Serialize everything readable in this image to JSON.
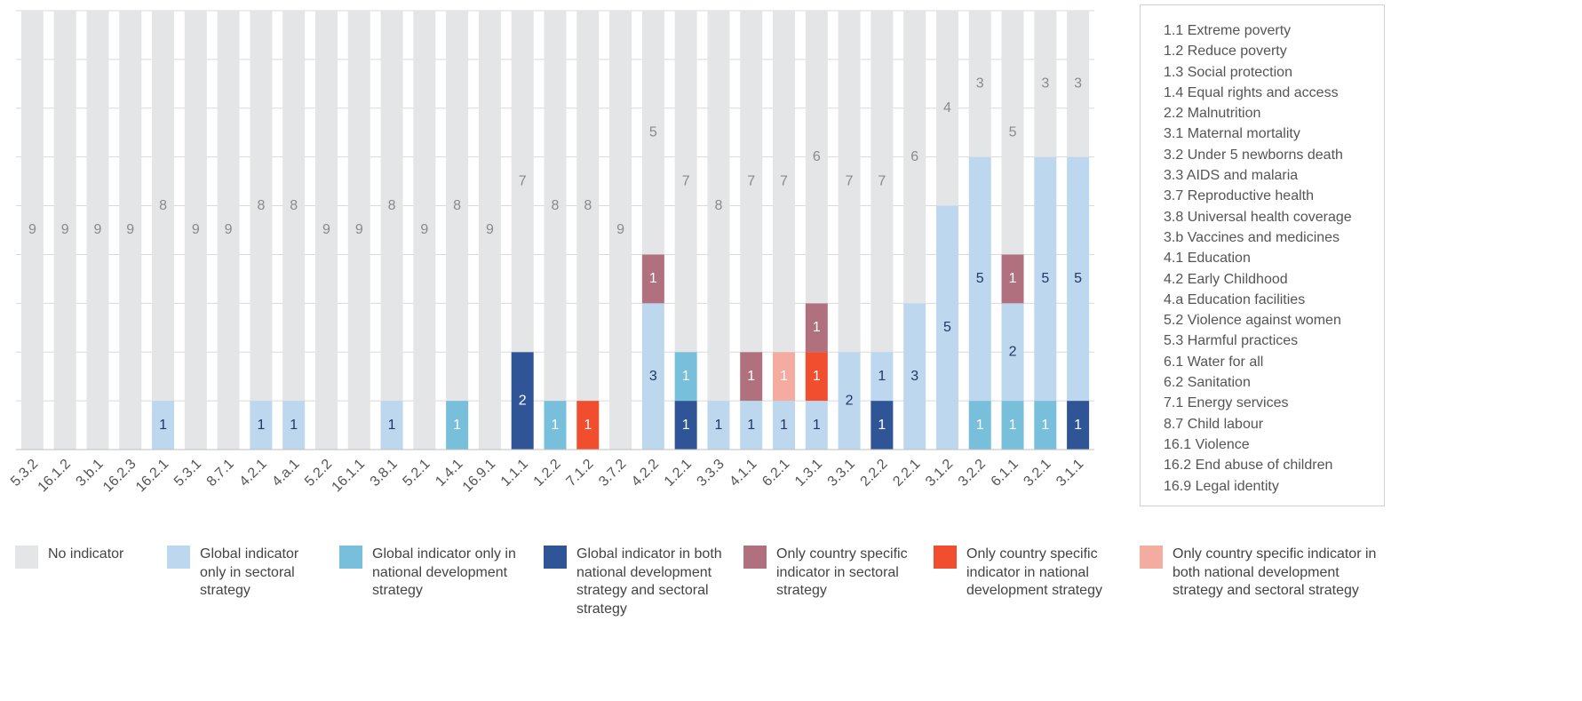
{
  "chart_data": {
    "type": "stacked_bar",
    "categories": [
      "5.3.2",
      "16.1.2",
      "3.b.1",
      "16.2.3",
      "16.2.1",
      "5.3.1",
      "8.7.1",
      "4.2.1",
      "4.a.1",
      "5.2.2",
      "16.1.1",
      "3.8.1",
      "5.2.1",
      "1.4.1",
      "16.9.1",
      "1.1.1",
      "1.2.2",
      "7.1.2",
      "3.7.2",
      "4.2.2",
      "1.2.1",
      "3.3.3",
      "4.1.1",
      "6.2.1",
      "1.3.1",
      "3.3.1",
      "2.2.2",
      "2.2.1",
      "3.1.2",
      "3.2.2",
      "6.1.1",
      "3.2.1",
      "3.1.1"
    ],
    "series": [
      {
        "name": "No indicator",
        "color": "#e4e5e7",
        "label_color": "#8a8a8a",
        "values": [
          9,
          9,
          9,
          9,
          8,
          9,
          9,
          8,
          8,
          9,
          9,
          8,
          9,
          8,
          9,
          7,
          8,
          8,
          9,
          5,
          7,
          8,
          7,
          7,
          6,
          7,
          7,
          6,
          4,
          3,
          5,
          3,
          3
        ]
      },
      {
        "name": "Global indicator only in sectoral strategy",
        "color": "#bdd7ee",
        "label_color": "#1f3864",
        "values": [
          0,
          0,
          0,
          0,
          1,
          0,
          0,
          1,
          1,
          0,
          0,
          1,
          0,
          0,
          0,
          0,
          0,
          0,
          0,
          3,
          0,
          1,
          1,
          1,
          1,
          2,
          1,
          3,
          5,
          5,
          2,
          5,
          5
        ]
      },
      {
        "name": "Global indicator only in national development strategy",
        "color": "#78bfdb",
        "label_color": "#ffffff",
        "values": [
          0,
          0,
          0,
          0,
          0,
          0,
          0,
          0,
          0,
          0,
          0,
          0,
          0,
          1,
          0,
          0,
          1,
          0,
          0,
          0,
          1,
          0,
          0,
          0,
          0,
          0,
          0,
          0,
          0,
          1,
          1,
          1,
          0
        ]
      },
      {
        "name": "Global indicator in both national development strategy and sectoral strategy",
        "color": "#2f5597",
        "label_color": "#ffffff",
        "values": [
          0,
          0,
          0,
          0,
          0,
          0,
          0,
          0,
          0,
          0,
          0,
          0,
          0,
          0,
          0,
          2,
          0,
          0,
          0,
          0,
          1,
          0,
          0,
          0,
          0,
          0,
          1,
          0,
          0,
          0,
          0,
          0,
          1
        ]
      },
      {
        "name": "Only country specific indicator in sectoral strategy",
        "color": "#b0707e",
        "label_color": "#ffffff",
        "values": [
          0,
          0,
          0,
          0,
          0,
          0,
          0,
          0,
          0,
          0,
          0,
          0,
          0,
          0,
          0,
          0,
          0,
          0,
          0,
          1,
          0,
          0,
          1,
          0,
          1,
          0,
          0,
          0,
          0,
          0,
          1,
          0,
          0
        ]
      },
      {
        "name": "Only country specific indicator in national development strategy",
        "color": "#f04e2f",
        "label_color": "#ffffff",
        "values": [
          0,
          0,
          0,
          0,
          0,
          0,
          0,
          0,
          0,
          0,
          0,
          0,
          0,
          0,
          0,
          0,
          0,
          1,
          0,
          0,
          0,
          0,
          0,
          0,
          1,
          0,
          0,
          0,
          0,
          0,
          0,
          0,
          0
        ]
      },
      {
        "name": "Only country specific indicator in both national development strategy and sectoral strategy",
        "color": "#f4aba0",
        "label_color": "#ffffff",
        "values": [
          0,
          0,
          0,
          0,
          0,
          0,
          0,
          0,
          0,
          0,
          0,
          0,
          0,
          0,
          0,
          0,
          0,
          0,
          0,
          0,
          0,
          0,
          0,
          1,
          0,
          0,
          0,
          0,
          0,
          0,
          0,
          0,
          0
        ]
      }
    ],
    "ylim": [
      0,
      9
    ],
    "yticks": [
      0,
      1,
      2,
      3,
      4,
      5,
      6,
      7,
      8,
      9
    ],
    "grid": true,
    "targets": [
      "1.1 Extreme poverty",
      "1.2 Reduce poverty",
      "1.3 Social protection",
      "1.4 Equal rights and access",
      "2.2 Malnutrition",
      "3.1 Maternal mortality",
      "3.2 Under 5 newborns death",
      "3.3 AIDS and malaria",
      "3.7 Reproductive health",
      "3.8 Universal health coverage",
      "3.b Vaccines and medicines",
      "4.1 Education",
      "4.2 Early Childhood",
      "4.a Education facilities",
      "5.2 Violence against women",
      "5.3 Harmful practices",
      "6.1 Water for all",
      "6.2 Sanitation",
      "7.1 Energy services",
      "8.7 Child labour",
      "16.1 Violence",
      "16.2 End abuse of children",
      "16.9 Legal identity"
    ]
  }
}
